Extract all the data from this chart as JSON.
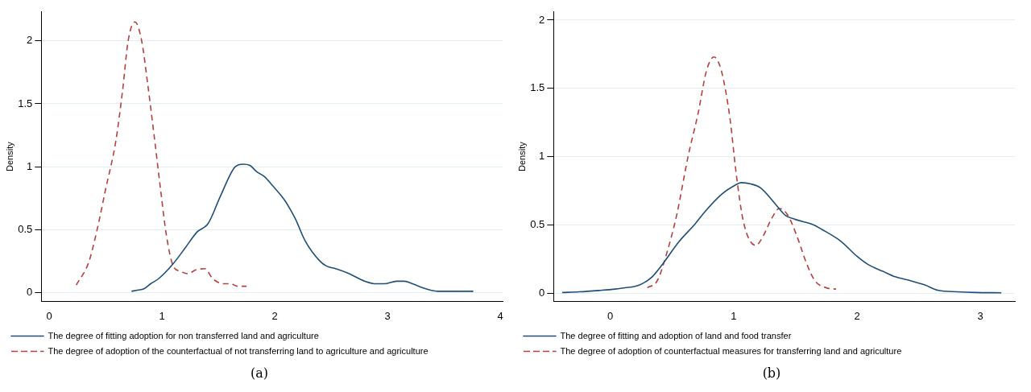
{
  "chart_data": [
    {
      "type": "line",
      "ylabel": "Density",
      "xlim": [
        -0.07,
        4.02
      ],
      "ylim": [
        -0.07,
        2.23
      ],
      "xticks": [
        0,
        1,
        2,
        3,
        4
      ],
      "yticks": [
        0,
        0.5,
        1,
        1.5,
        2
      ],
      "grid": "y",
      "legend": "bottom",
      "marker": "none",
      "annotations": [
        "(a)"
      ],
      "series": [
        {
          "name": "The degree of fitting adoption for non transferred land and agriculture",
          "color": "#1f4e79",
          "line_style": "solid",
          "x": [
            0.73,
            0.79,
            0.84,
            0.9,
            0.97,
            1.1,
            1.21,
            1.31,
            1.41,
            1.52,
            1.65,
            1.72,
            1.78,
            1.84,
            1.91,
            1.98,
            2.09,
            2.18,
            2.27,
            2.4,
            2.46,
            2.54,
            2.66,
            2.8,
            2.9,
            2.97,
            3.08,
            3.15,
            3.22,
            3.34,
            3.45,
            3.59,
            3.76
          ],
          "values": [
            0.01,
            0.02,
            0.03,
            0.07,
            0.11,
            0.23,
            0.36,
            0.48,
            0.55,
            0.77,
            1.0,
            1.02,
            1.01,
            0.96,
            0.92,
            0.85,
            0.73,
            0.59,
            0.41,
            0.25,
            0.21,
            0.19,
            0.15,
            0.09,
            0.07,
            0.07,
            0.09,
            0.09,
            0.07,
            0.03,
            0.01,
            0.01,
            0.01
          ]
        },
        {
          "name": "The degree of adoption of the counterfactual of not transferring land to agriculture and agriculture",
          "color": "#b5413f",
          "line_style": "dashed",
          "x": [
            0.24,
            0.35,
            0.42,
            0.5,
            0.59,
            0.65,
            0.7,
            0.76,
            0.82,
            0.87,
            0.93,
            0.99,
            1.04,
            1.1,
            1.16,
            1.23,
            1.3,
            1.38,
            1.45,
            1.55,
            1.61,
            1.67,
            1.75
          ],
          "values": [
            0.06,
            0.24,
            0.48,
            0.82,
            1.2,
            1.6,
            2.0,
            2.15,
            2.0,
            1.68,
            1.25,
            0.8,
            0.45,
            0.21,
            0.17,
            0.15,
            0.18,
            0.19,
            0.11,
            0.07,
            0.07,
            0.05,
            0.05
          ]
        }
      ]
    },
    {
      "type": "line",
      "ylabel": "Density",
      "xlim": [
        -0.46,
        3.28
      ],
      "ylim": [
        -0.06,
        2.06
      ],
      "xticks": [
        0,
        1,
        2,
        3
      ],
      "yticks": [
        0,
        0.5,
        1,
        1.5,
        2
      ],
      "grid": "y",
      "legend": "bottom",
      "marker": "none",
      "annotations": [
        "(b)"
      ],
      "series": [
        {
          "name": "The degree of fitting and adoption of land and food transfer",
          "color": "#1f4e79",
          "line_style": "solid",
          "x": [
            -0.39,
            -0.25,
            -0.09,
            0.04,
            0.12,
            0.2,
            0.26,
            0.34,
            0.43,
            0.55,
            0.69,
            0.77,
            0.91,
            1.01,
            1.06,
            1.14,
            1.22,
            1.35,
            1.42,
            1.5,
            1.65,
            1.71,
            1.87,
            2.0,
            2.09,
            2.21,
            2.31,
            2.44,
            2.55,
            2.66,
            2.81,
            2.96,
            3.17
          ],
          "values": [
            0.005,
            0.01,
            0.02,
            0.03,
            0.04,
            0.05,
            0.07,
            0.12,
            0.22,
            0.37,
            0.51,
            0.6,
            0.73,
            0.79,
            0.81,
            0.8,
            0.77,
            0.64,
            0.57,
            0.54,
            0.5,
            0.47,
            0.38,
            0.27,
            0.21,
            0.16,
            0.12,
            0.09,
            0.06,
            0.02,
            0.01,
            0.005,
            0.003
          ]
        },
        {
          "name": "The degree of adoption of counterfactual measures for transferring land and agriculture",
          "color": "#b5413f",
          "line_style": "dashed",
          "x": [
            0.3,
            0.38,
            0.46,
            0.54,
            0.63,
            0.71,
            0.78,
            0.84,
            0.9,
            0.97,
            1.02,
            1.08,
            1.18,
            1.24,
            1.31,
            1.37,
            1.44,
            1.52,
            1.59,
            1.66,
            1.75,
            1.83
          ],
          "values": [
            0.04,
            0.09,
            0.3,
            0.58,
            1.0,
            1.31,
            1.63,
            1.73,
            1.63,
            1.28,
            0.88,
            0.52,
            0.35,
            0.42,
            0.55,
            0.62,
            0.57,
            0.4,
            0.22,
            0.09,
            0.04,
            0.03
          ]
        }
      ]
    }
  ]
}
